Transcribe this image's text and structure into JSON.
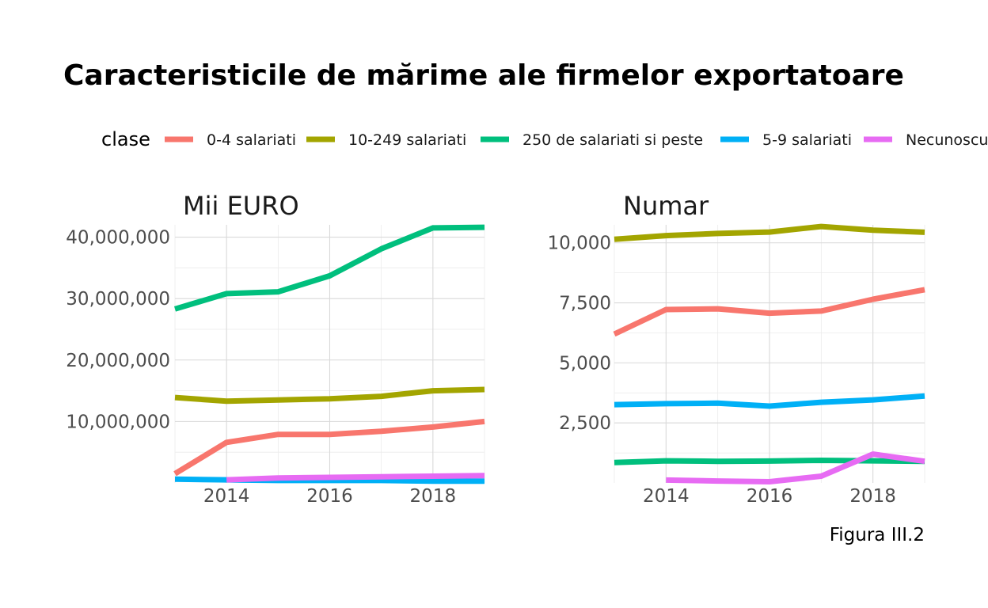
{
  "title": "Caracteristicile de mărime ale firmelor exportatoare",
  "caption": "Figura III.2",
  "legend": {
    "title": "clase",
    "entries": [
      {
        "label": "0-4 salariati",
        "color": "#F8766D"
      },
      {
        "label": "10-249 salariati",
        "color": "#A3A500"
      },
      {
        "label": "250 de salariati si peste",
        "color": "#00BF7D"
      },
      {
        "label": "5-9 salariati",
        "color": "#00B0F6"
      },
      {
        "label": "Necunoscut",
        "color": "#E76BF3"
      }
    ]
  },
  "chart_data": [
    {
      "type": "line",
      "title": "Mii EURO",
      "x": [
        2013,
        2014,
        2015,
        2016,
        2017,
        2018,
        2019
      ],
      "xticks": [
        "2014",
        "2016",
        "2018"
      ],
      "yticks": [
        "10,000,000",
        "20,000,000",
        "30,000,000",
        "40,000,000"
      ],
      "ylim": [
        0,
        42000000
      ],
      "xlim": [
        2013,
        2019
      ],
      "series": [
        {
          "name": "0-4 salariati",
          "color": "#F8766D",
          "x": [
            2013,
            2014,
            2015,
            2016,
            2017,
            2018,
            2019
          ],
          "values": [
            1500000,
            6600000,
            7900000,
            7900000,
            8400000,
            9100000,
            10000000
          ]
        },
        {
          "name": "10-249 salariati",
          "color": "#A3A500",
          "x": [
            2013,
            2014,
            2015,
            2016,
            2017,
            2018,
            2019
          ],
          "values": [
            13900000,
            13300000,
            13500000,
            13700000,
            14100000,
            15000000,
            15200000
          ]
        },
        {
          "name": "250 de salariati si peste",
          "color": "#00BF7D",
          "x": [
            2013,
            2014,
            2015,
            2016,
            2017,
            2018,
            2019
          ],
          "values": [
            28300000,
            30800000,
            31100000,
            33700000,
            38100000,
            41500000,
            41600000
          ]
        },
        {
          "name": "5-9 salariati",
          "color": "#00B0F6",
          "x": [
            2013,
            2014,
            2015,
            2016,
            2017,
            2018,
            2019
          ],
          "values": [
            600000,
            500000,
            400000,
            400000,
            400000,
            300000,
            300000
          ]
        },
        {
          "name": "Necunoscut",
          "color": "#E76BF3",
          "x": [
            2014,
            2015,
            2016,
            2017,
            2018,
            2019
          ],
          "values": [
            500000,
            800000,
            900000,
            1000000,
            1100000,
            1200000
          ]
        }
      ]
    },
    {
      "type": "line",
      "title": "Numar",
      "x": [
        2013,
        2014,
        2015,
        2016,
        2017,
        2018,
        2019
      ],
      "xticks": [
        "2014",
        "2016",
        "2018"
      ],
      "yticks": [
        "2,500",
        "5,000",
        "7,500",
        "10,000"
      ],
      "ylim": [
        0,
        10750
      ],
      "xlim": [
        2013,
        2019
      ],
      "series": [
        {
          "name": "0-4 salariati",
          "color": "#F8766D",
          "x": [
            2013,
            2014,
            2015,
            2016,
            2017,
            2018,
            2019
          ],
          "values": [
            6200,
            7220,
            7250,
            7070,
            7160,
            7650,
            8050
          ]
        },
        {
          "name": "10-249 salariati",
          "color": "#A3A500",
          "x": [
            2013,
            2014,
            2015,
            2016,
            2017,
            2018,
            2019
          ],
          "values": [
            10150,
            10300,
            10390,
            10450,
            10680,
            10530,
            10440
          ]
        },
        {
          "name": "250 de salariati si peste",
          "color": "#00BF7D",
          "x": [
            2013,
            2014,
            2015,
            2016,
            2017,
            2018,
            2019
          ],
          "values": [
            850,
            920,
            900,
            910,
            940,
            920,
            900
          ]
        },
        {
          "name": "5-9 salariati",
          "color": "#00B0F6",
          "x": [
            2013,
            2014,
            2015,
            2016,
            2017,
            2018,
            2019
          ],
          "values": [
            3260,
            3300,
            3320,
            3200,
            3360,
            3460,
            3620
          ]
        },
        {
          "name": "Necunoscut",
          "color": "#E76BF3",
          "x": [
            2014,
            2015,
            2016,
            2017,
            2018,
            2019
          ],
          "values": [
            120,
            80,
            50,
            280,
            1200,
            900
          ]
        }
      ]
    }
  ]
}
